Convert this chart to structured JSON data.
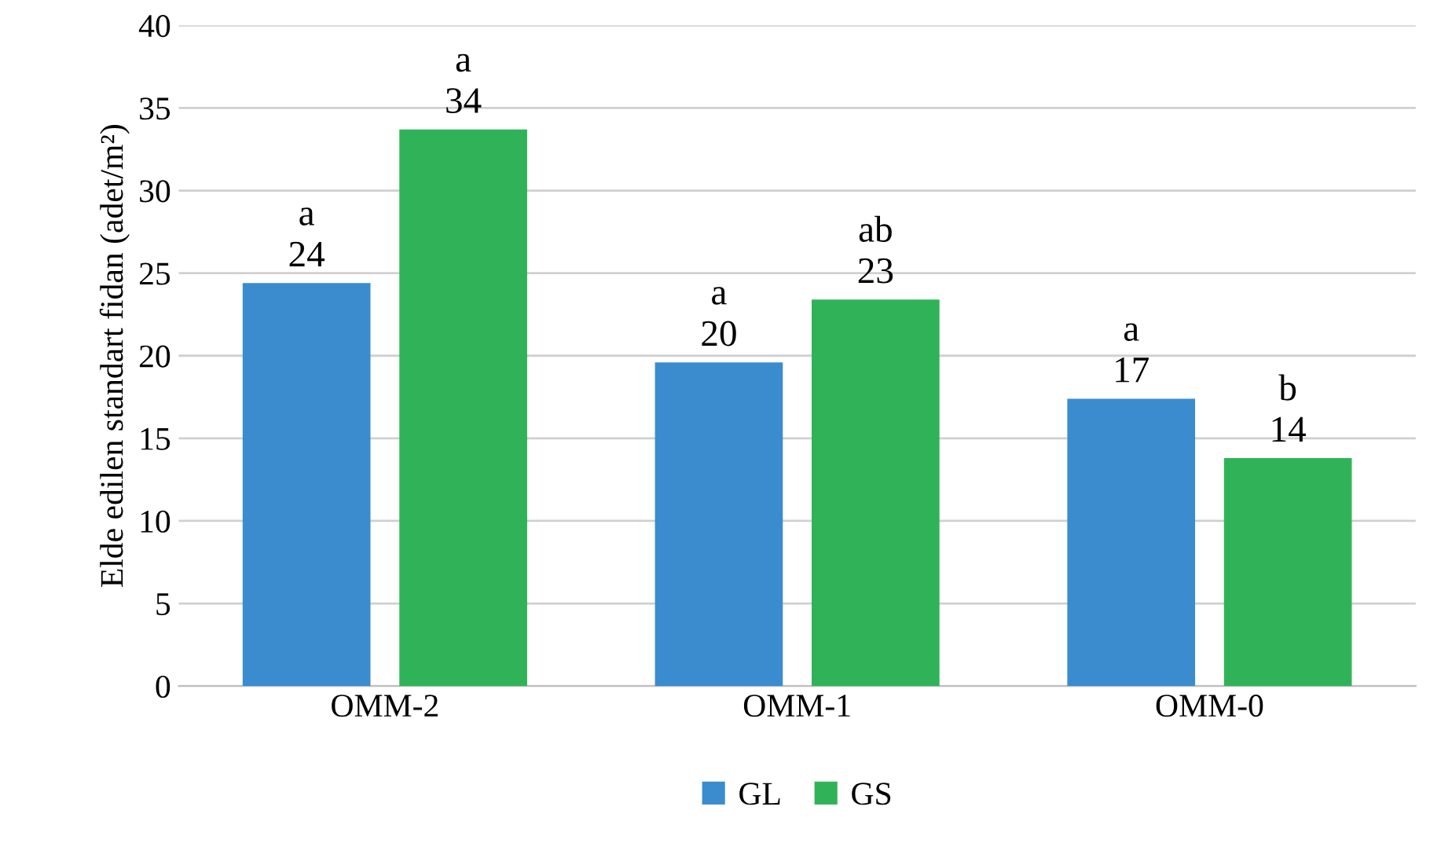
{
  "chart_data": {
    "type": "bar",
    "ylabel": "Elde edilen standart fidan (adet/m²)",
    "categories": [
      "OMM-2",
      "OMM-1",
      "OMM-0"
    ],
    "series": [
      {
        "name": "GL",
        "color": "#3a8ccf",
        "values": [
          24.4,
          19.6,
          17.4
        ],
        "value_labels": [
          "a\n24",
          "a\n20",
          "a\n17"
        ]
      },
      {
        "name": "GS",
        "color": "#30b358",
        "values": [
          33.7,
          23.4,
          13.8
        ],
        "value_labels": [
          "a\n34",
          "ab\n23",
          "b\n14"
        ]
      }
    ],
    "ylim": [
      0,
      40
    ],
    "yticks": [
      0,
      5,
      10,
      15,
      20,
      25,
      30,
      35,
      40
    ],
    "grid": "y",
    "legend": "bottom"
  }
}
